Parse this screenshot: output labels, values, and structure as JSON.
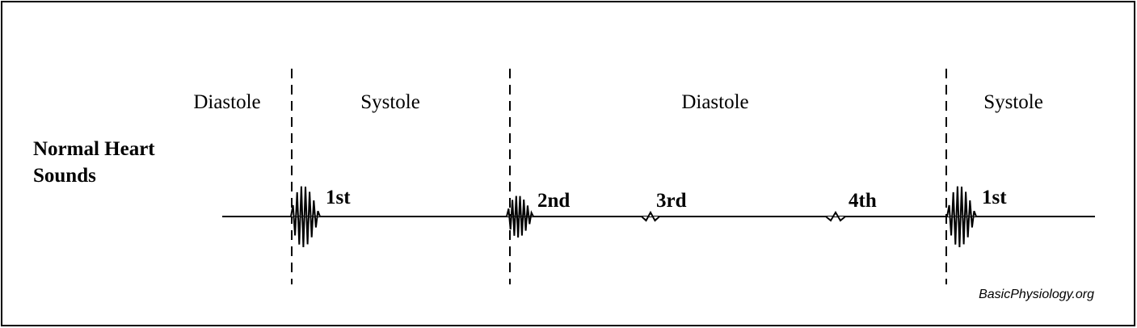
{
  "diagram": {
    "title_lines": [
      "Normal Heart Sounds"
    ],
    "title_line1": "Normal Heart",
    "title_line2": "Sounds",
    "phases": [
      "Diastole",
      "Systole",
      "Diastole",
      "Systole"
    ],
    "sounds": [
      "1st",
      "2nd",
      "3rd",
      "4th",
      "1st"
    ],
    "credit": "BasicPhysiology.org"
  }
}
